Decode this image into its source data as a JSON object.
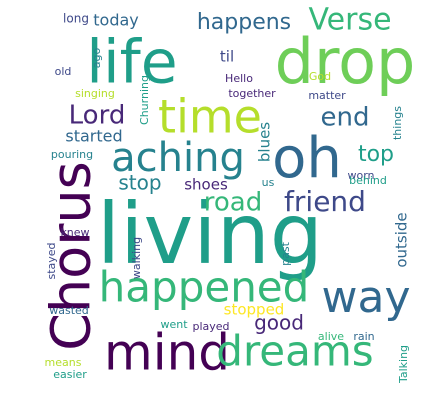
{
  "palette": {
    "dark_purple": "#440154",
    "indigo": "#482878",
    "slate_blue": "#3e4989",
    "steel_blue": "#31688e",
    "teal_blue": "#26828e",
    "teal": "#1f9e89",
    "green": "#35b779",
    "light_green": "#6ece58",
    "yellow_green": "#b5de2b",
    "yellow": "#fde725"
  },
  "words": [
    {
      "id": "living",
      "text": "living",
      "size": 1.0,
      "vertical": false,
      "color": "teal"
    },
    {
      "id": "drop",
      "text": "drop",
      "size": 0.82,
      "vertical": false,
      "color": "light_green"
    },
    {
      "id": "life",
      "text": "life",
      "size": 0.8,
      "vertical": false,
      "color": "teal"
    },
    {
      "id": "oh",
      "text": "oh",
      "size": 0.78,
      "vertical": false,
      "color": "steel_blue"
    },
    {
      "id": "mind",
      "text": "mind",
      "size": 0.72,
      "vertical": false,
      "color": "dark_purple"
    },
    {
      "id": "Chorus",
      "text": "Chorus",
      "size": 0.72,
      "vertical": true,
      "color": "dark_purple"
    },
    {
      "id": "time",
      "text": "time",
      "size": 0.62,
      "vertical": false,
      "color": "yellow_green"
    },
    {
      "id": "happened",
      "text": "happened",
      "size": 0.6,
      "vertical": false,
      "color": "green"
    },
    {
      "id": "dreams",
      "text": "dreams",
      "size": 0.58,
      "vertical": false,
      "color": "green"
    },
    {
      "id": "way",
      "text": "way",
      "size": 0.58,
      "vertical": false,
      "color": "steel_blue"
    },
    {
      "id": "aching",
      "text": "aching",
      "size": 0.52,
      "vertical": false,
      "color": "teal_blue"
    },
    {
      "id": "Verse",
      "text": "Verse",
      "size": 0.42,
      "vertical": false,
      "color": "green"
    },
    {
      "id": "friend",
      "text": "friend",
      "size": 0.38,
      "vertical": false,
      "color": "slate_blue"
    },
    {
      "id": "Lord",
      "text": "Lord",
      "size": 0.36,
      "vertical": false,
      "color": "indigo"
    },
    {
      "id": "end",
      "text": "end",
      "size": 0.36,
      "vertical": false,
      "color": "steel_blue"
    },
    {
      "id": "road",
      "text": "road",
      "size": 0.34,
      "vertical": false,
      "color": "green"
    },
    {
      "id": "happens",
      "text": "happens",
      "size": 0.3,
      "vertical": false,
      "color": "steel_blue"
    },
    {
      "id": "top",
      "text": "top",
      "size": 0.3,
      "vertical": false,
      "color": "teal"
    },
    {
      "id": "stop",
      "text": "stop",
      "size": 0.28,
      "vertical": false,
      "color": "teal_blue"
    },
    {
      "id": "good",
      "text": "good",
      "size": 0.28,
      "vertical": false,
      "color": "indigo"
    },
    {
      "id": "today",
      "text": "today",
      "size": 0.22,
      "vertical": false,
      "color": "steel_blue"
    },
    {
      "id": "started",
      "text": "started",
      "size": 0.22,
      "vertical": false,
      "color": "steel_blue"
    },
    {
      "id": "shoes",
      "text": "shoes",
      "size": 0.2,
      "vertical": false,
      "color": "indigo"
    },
    {
      "id": "til",
      "text": "til",
      "size": 0.2,
      "vertical": false,
      "color": "slate_blue"
    },
    {
      "id": "blues",
      "text": "blues",
      "size": 0.2,
      "vertical": true,
      "color": "teal_blue"
    },
    {
      "id": "outside",
      "text": "outside",
      "size": 0.2,
      "vertical": true,
      "color": "steel_blue"
    },
    {
      "id": "stopped",
      "text": "stopped",
      "size": 0.2,
      "vertical": false,
      "color": "yellow"
    },
    {
      "id": "long",
      "text": "long",
      "size": 0.16,
      "vertical": false,
      "color": "slate_blue"
    },
    {
      "id": "ago",
      "text": "ago",
      "size": 0.14,
      "vertical": true,
      "color": "teal_blue"
    },
    {
      "id": "old",
      "text": "old",
      "size": 0.14,
      "vertical": false,
      "color": "slate_blue"
    },
    {
      "id": "Hello",
      "text": "Hello",
      "size": 0.14,
      "vertical": false,
      "color": "indigo"
    },
    {
      "id": "God",
      "text": "God",
      "size": 0.14,
      "vertical": false,
      "color": "yellow_green"
    },
    {
      "id": "singing",
      "text": "singing",
      "size": 0.14,
      "vertical": false,
      "color": "yellow_green"
    },
    {
      "id": "Churning",
      "text": "Churning",
      "size": 0.14,
      "vertical": true,
      "color": "teal"
    },
    {
      "id": "together",
      "text": "together",
      "size": 0.14,
      "vertical": false,
      "color": "indigo"
    },
    {
      "id": "matter",
      "text": "matter",
      "size": 0.14,
      "vertical": false,
      "color": "slate_blue"
    },
    {
      "id": "things",
      "text": "things",
      "size": 0.14,
      "vertical": true,
      "color": "teal_blue"
    },
    {
      "id": "worn",
      "text": "worn",
      "size": 0.14,
      "vertical": false,
      "color": "slate_blue"
    },
    {
      "id": "pouring",
      "text": "pouring",
      "size": 0.14,
      "vertical": false,
      "color": "teal_blue"
    },
    {
      "id": "behind",
      "text": "behind",
      "size": 0.14,
      "vertical": false,
      "color": "teal"
    },
    {
      "id": "us",
      "text": "us",
      "size": 0.14,
      "vertical": false,
      "color": "teal_blue"
    },
    {
      "id": "past",
      "text": "past",
      "size": 0.14,
      "vertical": true,
      "color": "teal_blue"
    },
    {
      "id": "knew",
      "text": "knew",
      "size": 0.14,
      "vertical": false,
      "color": "indigo"
    },
    {
      "id": "stayed",
      "text": "stayed",
      "size": 0.14,
      "vertical": true,
      "color": "slate_blue"
    },
    {
      "id": "walking",
      "text": "walking",
      "size": 0.14,
      "vertical": true,
      "color": "slate_blue"
    },
    {
      "id": "wasted",
      "text": "wasted",
      "size": 0.14,
      "vertical": false,
      "color": "steel_blue"
    },
    {
      "id": "went",
      "text": "went",
      "size": 0.14,
      "vertical": false,
      "color": "teal"
    },
    {
      "id": "played",
      "text": "played",
      "size": 0.14,
      "vertical": false,
      "color": "indigo"
    },
    {
      "id": "alive",
      "text": "alive",
      "size": 0.14,
      "vertical": false,
      "color": "green"
    },
    {
      "id": "rain",
      "text": "rain",
      "size": 0.14,
      "vertical": false,
      "color": "steel_blue"
    },
    {
      "id": "means",
      "text": "means",
      "size": 0.14,
      "vertical": false,
      "color": "yellow_green"
    },
    {
      "id": "easier",
      "text": "easier",
      "size": 0.14,
      "vertical": false,
      "color": "teal"
    },
    {
      "id": "Talking",
      "text": "Talking",
      "size": 0.14,
      "vertical": true,
      "color": "teal"
    }
  ]
}
